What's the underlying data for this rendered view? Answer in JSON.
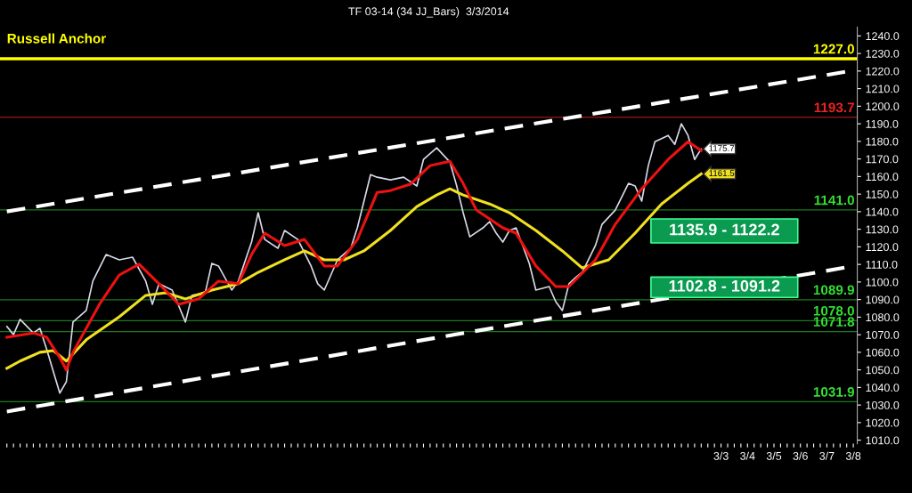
{
  "chart_data": {
    "type": "line",
    "title": "TF 03-14 (34 JJ_Bars)  3/3/2014",
    "categories": [
      null,
      null,
      null,
      null,
      null,
      null,
      null,
      null,
      null,
      null,
      null,
      null,
      null,
      null,
      null,
      null,
      null,
      null,
      null,
      null,
      null,
      null,
      null,
      null,
      null,
      null,
      null,
      null,
      null,
      null,
      null,
      null,
      null,
      null,
      null,
      null,
      null,
      null,
      null,
      null,
      null,
      null,
      null,
      null,
      null,
      null,
      null,
      null,
      null,
      null,
      null,
      null,
      null,
      null,
      null,
      null,
      null,
      null,
      null,
      null,
      null,
      null,
      null,
      null,
      null,
      null,
      null,
      null,
      null,
      null,
      null,
      null,
      null,
      null,
      null,
      null,
      null,
      null,
      null,
      null,
      null,
      null,
      null,
      null,
      null,
      null,
      null,
      null,
      null,
      null,
      null,
      null,
      null,
      null,
      null,
      null,
      null,
      null,
      null,
      null,
      null,
      null,
      null,
      null,
      null,
      null,
      null,
      null,
      "3/3",
      null,
      null,
      null,
      "3/4",
      null,
      null,
      null,
      "3/5",
      null,
      null,
      null,
      "3/6",
      null,
      null,
      null,
      "3/7",
      null,
      null,
      null,
      "3/8"
    ],
    "series": [
      {
        "color": "#d8d8e8",
        "line_style": "solid",
        "values": [
          1074.7,
          1070,
          1078.7,
          null,
          1071,
          1073.6,
          1062,
          null,
          1036.8,
          1043.3,
          1077.2,
          null,
          1083.8,
          1100.5,
          null,
          1115.6,
          null,
          1112.6,
          null,
          1114.1,
          null,
          1100.5,
          1087.3,
          1099,
          null,
          1095.4,
          null,
          1077.2,
          1092.4,
          null,
          1093.9,
          1110.6,
          1109.1,
          null,
          1095.4,
          1100.5,
          null,
          1122.7,
          1139.4,
          1124.2,
          null,
          1119.2,
          1129.3,
          null,
          1124.2,
          null,
          1109.1,
          1099,
          1095.4,
          null,
          1112.6,
          null,
          1119.2,
          1130.8,
          null,
          1161.1,
          1159.6,
          null,
          1158.1,
          null,
          1159.6,
          null,
          1154.6,
          1169.7,
          null,
          1176.3,
          null,
          1168.2,
          1155,
          1139.4,
          1125.7,
          null,
          1130.8,
          1134.3,
          1127.8,
          1122.7,
          1129.3,
          1130.8,
          null,
          1110.6,
          1095.4,
          null,
          1097.4,
          1088.8,
          1083.8,
          1099,
          1102.5,
          1105.5,
          null,
          1120.7,
          1132.8,
          null,
          1140.9,
          null,
          1156.1,
          1154.6,
          1146,
          1166.2,
          1179.8,
          null,
          1183.4,
          1178.3,
          1190,
          1183.4,
          1169.7,
          1175.7,
          null,
          null,
          null,
          null,
          null,
          null,
          null,
          null,
          null,
          null,
          null,
          null,
          null,
          null,
          null,
          null,
          null,
          null,
          null,
          null,
          null,
          null,
          null
        ],
        "value_labels": [
          null,
          null,
          null,
          null,
          null,
          null,
          null,
          null,
          null,
          null,
          null,
          null,
          null,
          null,
          null,
          null,
          null,
          null,
          null,
          null,
          null,
          null,
          null,
          null,
          null,
          null,
          null,
          null,
          null,
          null,
          null,
          null,
          null,
          null,
          null,
          null,
          null,
          null,
          null,
          null,
          null,
          null,
          null,
          null,
          null,
          null,
          null,
          null,
          null,
          null,
          null,
          null,
          null,
          null,
          null,
          null,
          null,
          null,
          null,
          null,
          null,
          null,
          null,
          null,
          null,
          null,
          null,
          null,
          null,
          null,
          null,
          null,
          null,
          null,
          null,
          null,
          null,
          null,
          null,
          null,
          null,
          null,
          null,
          null,
          null,
          null,
          null,
          null,
          null,
          null,
          null,
          null,
          null,
          null,
          null,
          null,
          null,
          null,
          null,
          null,
          null,
          null,
          null,
          null,
          null,
          "1175.7",
          null,
          null,
          null,
          null,
          null,
          null,
          null,
          null,
          null,
          null,
          null,
          null,
          null,
          null,
          null,
          null,
          null,
          null,
          null,
          null,
          null,
          null,
          null
        ]
      },
      {
        "color": "#f0e020",
        "line_style": "solid",
        "values": [
          1050.9,
          null,
          1055,
          null,
          null,
          1060,
          null,
          1061,
          null,
          1055,
          null,
          null,
          1067.1,
          null,
          null,
          null,
          null,
          1080.2,
          null,
          null,
          null,
          1092.4,
          null,
          null,
          1093.9,
          null,
          null,
          1090.4,
          null,
          null,
          null,
          1095.4,
          null,
          null,
          null,
          1099,
          null,
          null,
          1105.5,
          null,
          null,
          null,
          1112.6,
          null,
          null,
          1117.7,
          null,
          null,
          1112.6,
          null,
          null,
          1112.6,
          null,
          null,
          1117.7,
          null,
          null,
          null,
          1129.3,
          null,
          null,
          null,
          1142.9,
          null,
          null,
          1149.5,
          null,
          1153,
          null,
          1149.5,
          null,
          null,
          null,
          1144.4,
          null,
          null,
          1139.4,
          null,
          null,
          null,
          1129.3,
          null,
          null,
          null,
          1117.7,
          null,
          null,
          1108,
          null,
          null,
          null,
          1112.6,
          null,
          null,
          null,
          1127.8,
          null,
          null,
          null,
          1144.4,
          null,
          null,
          null,
          1156.1,
          null,
          1161.5,
          null,
          null,
          null,
          null,
          null,
          null,
          null,
          null,
          null,
          null,
          null,
          null,
          null,
          null,
          null,
          null,
          null,
          null,
          null,
          null,
          null,
          null,
          null
        ],
        "value_labels": [
          null,
          null,
          null,
          null,
          null,
          null,
          null,
          null,
          null,
          null,
          null,
          null,
          null,
          null,
          null,
          null,
          null,
          null,
          null,
          null,
          null,
          null,
          null,
          null,
          null,
          null,
          null,
          null,
          null,
          null,
          null,
          null,
          null,
          null,
          null,
          null,
          null,
          null,
          null,
          null,
          null,
          null,
          null,
          null,
          null,
          null,
          null,
          null,
          null,
          null,
          null,
          null,
          null,
          null,
          null,
          null,
          null,
          null,
          null,
          null,
          null,
          null,
          null,
          null,
          null,
          null,
          null,
          null,
          null,
          null,
          null,
          null,
          null,
          null,
          null,
          null,
          null,
          null,
          null,
          null,
          null,
          null,
          null,
          null,
          null,
          null,
          null,
          null,
          null,
          null,
          null,
          null,
          null,
          null,
          null,
          null,
          null,
          null,
          null,
          null,
          null,
          null,
          null,
          null,
          null,
          "1161.5",
          null,
          null,
          null,
          null,
          null,
          null,
          null,
          null,
          null,
          null,
          null,
          null,
          null,
          null,
          null,
          null,
          null,
          null,
          null,
          null,
          null,
          null,
          null
        ]
      },
      {
        "color": "#ee1111",
        "line_style": "solid",
        "values": [
          1068.6,
          null,
          null,
          null,
          1071,
          null,
          1068.6,
          null,
          1057,
          1049.9,
          1060,
          null,
          null,
          null,
          1087.3,
          null,
          null,
          1104,
          null,
          null,
          1110.1,
          null,
          null,
          1099,
          null,
          null,
          1087.3,
          null,
          null,
          1090.4,
          null,
          null,
          1100.5,
          null,
          null,
          1099,
          null,
          1115.6,
          null,
          1127.8,
          null,
          null,
          1120.7,
          null,
          null,
          1124.2,
          null,
          null,
          1109.1,
          null,
          1109.1,
          null,
          null,
          1124.2,
          null,
          null,
          1151,
          null,
          1152,
          null,
          null,
          1155.6,
          null,
          null,
          1166.2,
          null,
          null,
          1168.7,
          null,
          1156.1,
          null,
          1140.9,
          null,
          null,
          null,
          1130.8,
          null,
          1127.8,
          null,
          null,
          1109.1,
          null,
          null,
          1097.4,
          null,
          1097.4,
          null,
          null,
          null,
          1112.6,
          null,
          null,
          1132.8,
          null,
          null,
          null,
          1153,
          null,
          null,
          null,
          1169.7,
          null,
          null,
          1179.8,
          null,
          1174.8,
          null,
          null,
          null,
          null,
          null,
          null,
          null,
          null,
          null,
          null,
          null,
          null,
          null,
          null,
          null,
          null,
          null,
          null,
          null,
          null,
          null,
          null,
          null
        ]
      },
      {
        "color": "#ffffff",
        "line_style": "dashed",
        "values": [
          1140.1,
          null,
          null,
          null,
          null,
          null,
          null,
          null,
          null,
          null,
          null,
          null,
          null,
          null,
          null,
          null,
          null,
          null,
          null,
          null,
          null,
          null,
          null,
          null,
          null,
          null,
          null,
          null,
          null,
          null,
          null,
          null,
          null,
          null,
          null,
          null,
          null,
          null,
          null,
          null,
          null,
          null,
          null,
          null,
          null,
          null,
          null,
          null,
          null,
          null,
          null,
          null,
          null,
          null,
          null,
          null,
          null,
          null,
          null,
          null,
          null,
          null,
          null,
          null,
          null,
          null,
          null,
          null,
          null,
          null,
          null,
          null,
          null,
          null,
          null,
          null,
          null,
          null,
          null,
          null,
          null,
          null,
          null,
          null,
          null,
          null,
          null,
          null,
          null,
          null,
          null,
          null,
          null,
          null,
          null,
          null,
          null,
          null,
          null,
          null,
          null,
          null,
          null,
          null,
          null,
          null,
          null,
          null,
          null,
          null,
          null,
          null,
          null,
          null,
          null,
          null,
          null,
          null,
          null,
          null,
          null,
          null,
          null,
          null,
          null,
          null,
          null,
          null,
          1220.3
        ]
      },
      {
        "color": "#ffffff",
        "line_style": "dashed",
        "values": [
          1026.3,
          null,
          null,
          null,
          null,
          null,
          null,
          null,
          null,
          null,
          null,
          null,
          null,
          null,
          null,
          null,
          null,
          null,
          null,
          null,
          null,
          null,
          null,
          null,
          null,
          null,
          null,
          null,
          null,
          null,
          null,
          null,
          null,
          null,
          null,
          null,
          null,
          null,
          null,
          null,
          null,
          null,
          null,
          null,
          null,
          null,
          null,
          null,
          null,
          null,
          null,
          null,
          null,
          null,
          null,
          null,
          null,
          null,
          null,
          null,
          null,
          null,
          null,
          null,
          null,
          null,
          null,
          null,
          null,
          null,
          null,
          null,
          null,
          null,
          null,
          null,
          null,
          null,
          null,
          null,
          null,
          null,
          null,
          null,
          null,
          null,
          null,
          null,
          null,
          null,
          null,
          null,
          null,
          null,
          null,
          null,
          null,
          null,
          null,
          null,
          null,
          null,
          null,
          null,
          null,
          null,
          null,
          null,
          null,
          null,
          null,
          null,
          null,
          null,
          null,
          null,
          null,
          null,
          null,
          null,
          null,
          null,
          null,
          null,
          null,
          null,
          null,
          null,
          1109.0
        ]
      }
    ],
    "ylim": [
      1008,
      1245
    ],
    "yticks": [
      {
        "value": 1010,
        "label": "1010.0"
      },
      {
        "value": 1020,
        "label": "1020.0"
      },
      {
        "value": 1030,
        "label": "1030.0"
      },
      {
        "value": 1040,
        "label": "1040.0"
      },
      {
        "value": 1050,
        "label": "1050.0"
      },
      {
        "value": 1060,
        "label": "1060.0"
      },
      {
        "value": 1070,
        "label": "1070.0"
      },
      {
        "value": 1080,
        "label": "1080.0"
      },
      {
        "value": 1090,
        "label": "1090.0"
      },
      {
        "value": 1100,
        "label": "1100.0"
      },
      {
        "value": 1110,
        "label": "1110.0"
      },
      {
        "value": 1120,
        "label": "1120.0"
      },
      {
        "value": 1130,
        "label": "1130.0"
      },
      {
        "value": 1140,
        "label": "1140.0"
      },
      {
        "value": 1150,
        "label": "1150.0"
      },
      {
        "value": 1160,
        "label": "1160.0"
      },
      {
        "value": 1170,
        "label": "1170.0"
      },
      {
        "value": 1180,
        "label": "1180.0"
      },
      {
        "value": 1190,
        "label": "1190.0"
      },
      {
        "value": 1200,
        "label": "1200.0"
      },
      {
        "value": 1210,
        "label": "1210.0"
      },
      {
        "value": 1220,
        "label": "1220.0"
      },
      {
        "value": 1230,
        "label": "1230.0"
      },
      {
        "value": 1240,
        "label": "1240.0"
      }
    ],
    "ref_lines": [
      {
        "axis": "y",
        "value": 1227.0,
        "label": "1227.0",
        "color": "#ffff00"
      },
      {
        "axis": "y",
        "value": 1193.7,
        "label": "1193.7",
        "color": "#ee2222"
      },
      {
        "axis": "y",
        "value": 1141.0,
        "label": "1141.0",
        "color": "#33dd33"
      },
      {
        "axis": "y",
        "value": 1089.9,
        "label": "1089.9",
        "color": "#33dd33"
      },
      {
        "axis": "y",
        "value": 1078.0,
        "label": "1078.0",
        "color": "#33dd33"
      },
      {
        "axis": "y",
        "value": 1071.8,
        "label": "1071.8",
        "color": "#33dd33"
      },
      {
        "axis": "y",
        "value": 1031.9,
        "label": "1031.9",
        "color": "#33dd33"
      }
    ],
    "bands": [
      {
        "axis": "y",
        "from": 1122.2,
        "to": 1135.9,
        "label": "1135.9 - 1122.2",
        "color": "#0a9a50"
      },
      {
        "axis": "y",
        "from": 1091.2,
        "to": 1102.8,
        "label": "1102.8 - 1091.2",
        "color": "#0a9a50"
      }
    ],
    "annotations": [
      "Russell Anchor"
    ],
    "grid": false,
    "legend": false
  }
}
